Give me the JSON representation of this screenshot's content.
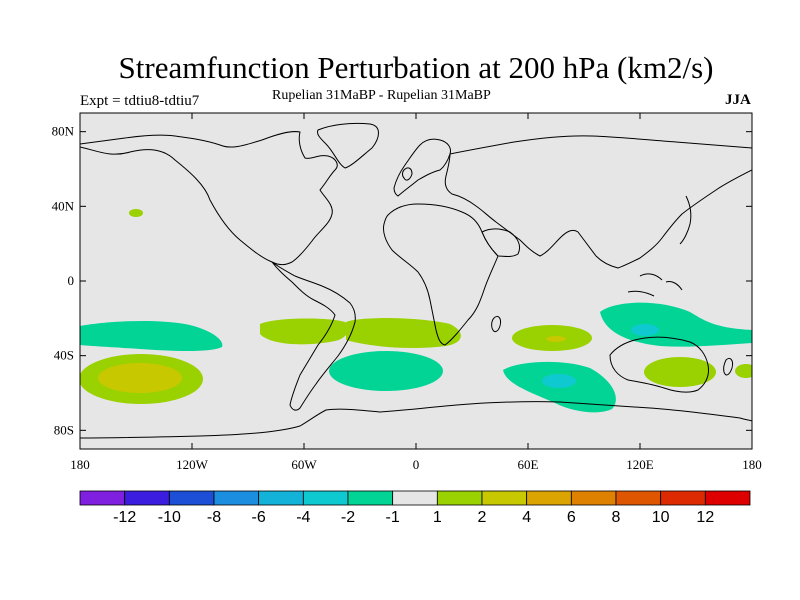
{
  "title": "Streamfunction Perturbation at 200 hPa (km2/s)",
  "expt_label": "Expt = tdtiu8-tdtiu7",
  "subtitle": "Rupelian  31MaBP - Rupelian  31MaBP",
  "season": "JJA",
  "axes": {
    "lon_ticks": [
      "180",
      "120W",
      "60W",
      "0",
      "60E",
      "120E",
      "180"
    ],
    "lat_ticks": [
      "80N",
      "40N",
      "0",
      "40S",
      "80S"
    ]
  },
  "colorbar": {
    "labels": [
      "-12",
      "-10",
      "-8",
      "-6",
      "-4",
      "-2",
      "-1",
      "1",
      "2",
      "4",
      "6",
      "8",
      "10",
      "12"
    ],
    "colors": [
      "#7f1fe0",
      "#3b1de0",
      "#1c4fd6",
      "#1b8ee0",
      "#13b2d8",
      "#0ec9cf",
      "#02d496",
      "#e6e6e6",
      "#9ad100",
      "#c8c800",
      "#dba400",
      "#de8000",
      "#de5600",
      "#de2a00",
      "#de0000"
    ]
  },
  "map_colors": {
    "background": "#e6e6e6",
    "coast": "#000000"
  },
  "chart_data": {
    "type": "contour-map",
    "variable": "Streamfunction Perturbation at 200 hPa",
    "units": "km2/s",
    "season": "JJA",
    "lon_range": [
      -180,
      180
    ],
    "lat_range": [
      -90,
      90
    ],
    "levels": [
      -12,
      -10,
      -8,
      -6,
      -4,
      -2,
      -1,
      1,
      2,
      4,
      6,
      8,
      10,
      12
    ],
    "anomalies": [
      {
        "name": "central-pacific-negative",
        "lon": -138,
        "lat": -31,
        "value": -2
      },
      {
        "name": "south-pacific-positive",
        "lon": -142,
        "lat": -52,
        "value": 4
      },
      {
        "name": "south-america-positive",
        "lon": -52,
        "lat": -29,
        "value": 2
      },
      {
        "name": "south-atlantic-positive",
        "lon": 8,
        "lat": -28,
        "value": 2
      },
      {
        "name": "south-atlantic-negative",
        "lon": -25,
        "lat": -48,
        "value": -2
      },
      {
        "name": "indian-ocean-positive",
        "lon": 73,
        "lat": -31,
        "value": 4
      },
      {
        "name": "indian-ocean-negative",
        "lon": 78,
        "lat": -54,
        "value": -4
      },
      {
        "name": "australia-negative",
        "lon": 128,
        "lat": -26,
        "value": -4
      },
      {
        "name": "australia-positive",
        "lon": 143,
        "lat": -48,
        "value": 2
      },
      {
        "name": "north-pacific-positive",
        "lon": -152,
        "lat": 38,
        "value": 2
      }
    ]
  }
}
